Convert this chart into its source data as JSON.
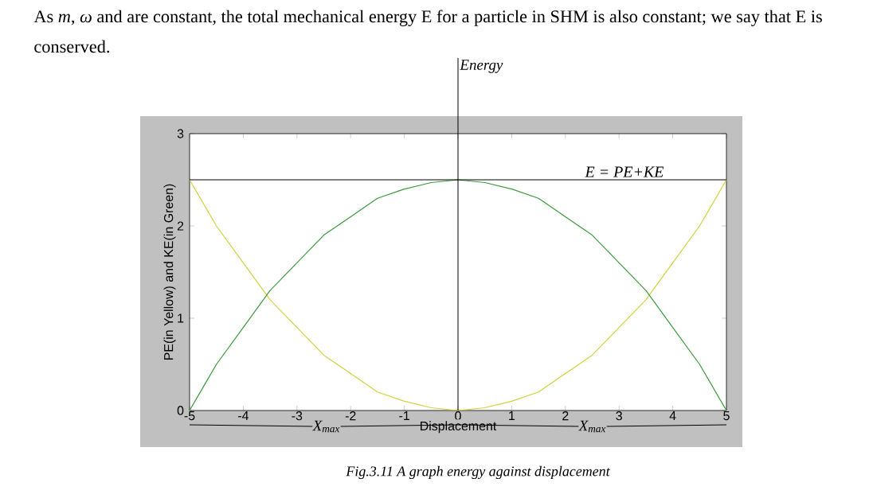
{
  "chart_data": {
    "type": "line",
    "xlabel": "Displacement",
    "ylabel": "PE(in Yellow) and KE(in Green)",
    "x": [
      -5,
      -4.5,
      -4,
      -3.5,
      -3,
      -2.5,
      -2,
      -1.5,
      -1,
      -0.5,
      0,
      0.5,
      1,
      1.5,
      2,
      2.5,
      3,
      3.5,
      4,
      4.5,
      5
    ],
    "series": [
      {
        "color": "#d2d23c",
        "values": [
          2.5,
          2.0,
          1.6,
          1.2,
          0.9,
          0.6,
          0.4,
          0.2,
          0.1,
          0.03,
          0,
          0.03,
          0.1,
          0.2,
          0.4,
          0.6,
          0.9,
          1.2,
          1.6,
          2.0,
          2.5
        ]
      },
      {
        "color": "#3c9a3c",
        "values": [
          0,
          0.5,
          0.9,
          1.3,
          1.6,
          1.9,
          2.1,
          2.3,
          2.4,
          2.47,
          2.5,
          2.47,
          2.4,
          2.3,
          2.1,
          1.9,
          1.6,
          1.3,
          0.9,
          0.5,
          0
        ]
      }
    ],
    "xlim": [
      -5,
      5
    ],
    "ylim": [
      0,
      3
    ],
    "xticks": [
      -5,
      -4,
      -3,
      -2,
      -1,
      0,
      1,
      2,
      3,
      4,
      5
    ],
    "yticks": [
      0,
      1,
      2,
      3
    ],
    "ref_lines": [
      {
        "axis": "x",
        "value": 0,
        "label": "Energy",
        "color": "#000000"
      },
      {
        "axis": "y",
        "value": 2.5,
        "label": "E = PE+KE",
        "color": "#000000"
      }
    ],
    "annotations": [
      "As *m*, *ω* and  are constant, the total mechanical energy E for a particle in SHM is also constant; we say that E is conserved.",
      "Fig.3.11 A graph energy against displacement",
      "X$_{max}$",
      "X$_{max}$"
    ],
    "grid": false,
    "marker": "none",
    "line_style": "solid"
  }
}
